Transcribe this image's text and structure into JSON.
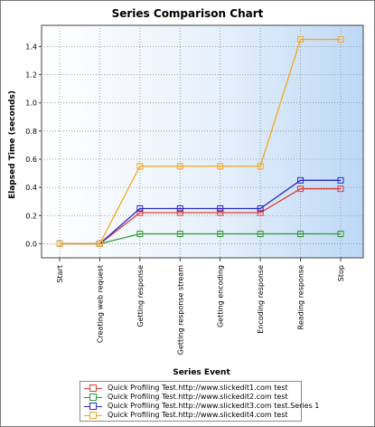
{
  "chart_data": {
    "type": "line",
    "title": "Series Comparison Chart",
    "xlabel": "Series Event",
    "ylabel": "Elapsed Time (seconds)",
    "categories": [
      "Start",
      "Creating web request",
      "Getting response",
      "Getting response stream",
      "Getting encoding",
      "Encoding response",
      "Reading response",
      "Stop"
    ],
    "ylim": [
      -0.1,
      1.55
    ],
    "yticks": [
      "0.0",
      "0.2",
      "0.4",
      "0.6",
      "0.8",
      "1.0",
      "1.2",
      "1.4"
    ],
    "grid": true,
    "legend_position": "bottom",
    "series": [
      {
        "name": "Quick Profiling Test.http://www.slickedit1.com test",
        "color": "#e03a3a",
        "values": [
          0,
          0,
          0.22,
          0.22,
          0.22,
          0.22,
          0.39,
          0.39
        ]
      },
      {
        "name": "Quick Profiling Test.http://www.slickedit2.com test",
        "color": "#2e9a2e",
        "values": [
          0,
          0,
          0.07,
          0.07,
          0.07,
          0.07,
          0.07,
          0.07
        ]
      },
      {
        "name": "Quick Profiling Test.http://www.slickedit3.com test.Series 1",
        "color": "#2a2ac8",
        "values": [
          0,
          0,
          0.25,
          0.25,
          0.25,
          0.25,
          0.45,
          0.45
        ]
      },
      {
        "name": "Quick Profiling Test.http://www.slickedit4.com test",
        "color": "#f2a81e",
        "values": [
          0,
          0,
          0.55,
          0.55,
          0.55,
          0.55,
          1.45,
          1.45
        ]
      }
    ]
  }
}
